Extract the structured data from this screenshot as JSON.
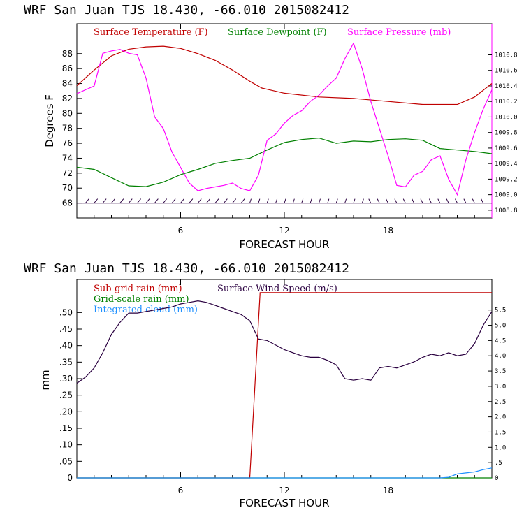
{
  "chart_data": [
    {
      "type": "line",
      "title": "WRF  San Juan TJS  18.430, -66.010  2015082412",
      "xlabel": "FORECAST HOUR",
      "ylabel": "Degrees F",
      "xlim": [
        0,
        24
      ],
      "ylim": [
        66,
        92
      ],
      "y2lim": [
        1008.7,
        1011.2
      ],
      "x_ticks": [
        "6",
        "12",
        "18"
      ],
      "y_ticks": [
        "68",
        "70",
        "72",
        "74",
        "76",
        "78",
        "80",
        "82",
        "84",
        "86",
        "88"
      ],
      "y2_ticks": [
        "1008.8",
        "1009.0",
        "1009.2",
        "1009.4",
        "1009.6",
        "1009.8",
        "1010.0",
        "1010.2",
        "1010.4",
        "1010.6",
        "1010.8"
      ],
      "colors": {
        "temperature": "#c00000",
        "dewpoint": "#008000",
        "pressure": "#ff00ff",
        "wind": "#2a0040"
      },
      "wind_barbs": "row of wind barbs along y=68",
      "series": [
        {
          "name": "Surface Temperature (F)",
          "axis": "left",
          "x": [
            0,
            1,
            2,
            3,
            4,
            5,
            6,
            7,
            8,
            9,
            10,
            10.7,
            12,
            14,
            16,
            18,
            20,
            22,
            23,
            24
          ],
          "values": [
            83.7,
            85.8,
            87.7,
            88.6,
            88.9,
            89.0,
            88.7,
            88.0,
            87.1,
            85.8,
            84.3,
            83.4,
            82.7,
            82.2,
            82.0,
            81.6,
            81.2,
            81.2,
            82.2,
            84.0
          ]
        },
        {
          "name": "Surface Dewpoint (F)",
          "axis": "left",
          "x": [
            0,
            1,
            2,
            3,
            4,
            5,
            6,
            7,
            8,
            9,
            10,
            11,
            12,
            13,
            14,
            15,
            16,
            17,
            18,
            19,
            20,
            21,
            22,
            23,
            24
          ],
          "values": [
            72.8,
            72.5,
            71.4,
            70.3,
            70.2,
            70.8,
            71.8,
            72.5,
            73.3,
            73.7,
            74.0,
            75.1,
            76.1,
            76.5,
            76.7,
            76.0,
            76.3,
            76.2,
            76.5,
            76.6,
            76.4,
            75.3,
            75.1,
            74.9,
            74.6
          ]
        },
        {
          "name": "Surface Pressure (mb)",
          "axis": "right",
          "x": [
            0,
            0.5,
            1,
            1.5,
            2,
            2.5,
            3,
            3.5,
            4,
            4.5,
            5,
            5.5,
            6,
            6.5,
            7,
            7.5,
            8,
            8.5,
            9,
            9.5,
            10,
            10.5,
            11,
            11.5,
            12,
            12.5,
            13,
            13.5,
            14,
            14.5,
            15,
            15.5,
            16,
            16.5,
            17,
            17.5,
            18,
            18.5,
            19,
            19.5,
            20,
            20.5,
            21,
            21.5,
            22,
            22.5,
            23,
            23.5,
            24
          ],
          "values": [
            1010.3,
            1010.35,
            1010.4,
            1010.82,
            1010.85,
            1010.87,
            1010.82,
            1010.8,
            1010.5,
            1010.0,
            1009.85,
            1009.55,
            1009.35,
            1009.15,
            1009.05,
            1009.08,
            1009.1,
            1009.12,
            1009.15,
            1009.08,
            1009.05,
            1009.25,
            1009.7,
            1009.78,
            1009.92,
            1010.02,
            1010.08,
            1010.2,
            1010.28,
            1010.4,
            1010.5,
            1010.75,
            1010.95,
            1010.62,
            1010.2,
            1009.85,
            1009.5,
            1009.12,
            1009.1,
            1009.25,
            1009.3,
            1009.45,
            1009.5,
            1009.2,
            1009.0,
            1009.45,
            1009.8,
            1010.1,
            1010.35
          ]
        }
      ]
    },
    {
      "type": "line",
      "title": "WRF  San Juan TJS  18.430, -66.010  2015082412",
      "xlabel": "FORECAST HOUR",
      "ylabel": "mm",
      "xlim": [
        0,
        24
      ],
      "ylim": [
        0,
        0.6
      ],
      "y2lim": [
        0,
        6.5
      ],
      "x_ticks": [
        "6",
        "12",
        "18"
      ],
      "y_ticks": [
        "0",
        ".05",
        ".10",
        ".15",
        ".20",
        ".25",
        ".30",
        ".35",
        ".40",
        ".45",
        ".50"
      ],
      "y2_ticks": [
        "0",
        ".5",
        "1.0",
        "1.5",
        "2.0",
        "2.5",
        "3.0",
        "3.5",
        "4.0",
        "4.5",
        "5.0",
        "5.5"
      ],
      "colors": {
        "subgrid": "#c00000",
        "gridscale": "#008000",
        "cloud": "#1e90ff",
        "wind": "#2a0040"
      },
      "series": [
        {
          "name": "Sub-grid rain (mm)",
          "axis": "left",
          "x": [
            0,
            10.0,
            10.6,
            24
          ],
          "values": [
            0,
            0,
            0.56,
            0.56
          ]
        },
        {
          "name": "Grid-scale rain (mm)",
          "axis": "left",
          "x": [
            0,
            24
          ],
          "values": [
            0,
            0
          ]
        },
        {
          "name": "Integrated cloud (mm)",
          "axis": "left",
          "x": [
            0,
            21.0,
            21.5,
            22,
            22.5,
            23,
            23.5,
            24
          ],
          "values": [
            0,
            0,
            0.002,
            0.012,
            0.015,
            0.018,
            0.025,
            0.03
          ]
        },
        {
          "name": "Surface Wind Speed (m/s)",
          "axis": "right",
          "x": [
            0,
            0.5,
            1,
            1.5,
            2,
            2.5,
            3,
            3.5,
            4,
            4.5,
            5,
            5.5,
            6,
            6.5,
            7,
            7.5,
            8,
            8.5,
            9,
            9.5,
            10,
            10.5,
            11,
            11.5,
            12,
            12.5,
            13,
            13.5,
            14,
            14.5,
            15,
            15.5,
            16,
            16.5,
            17,
            17.5,
            18,
            18.5,
            19,
            19.5,
            20,
            20.5,
            21,
            21.5,
            22,
            22.5,
            23,
            23.5,
            24
          ],
          "values": [
            3.1,
            3.3,
            3.6,
            4.1,
            4.7,
            5.1,
            5.4,
            5.4,
            5.45,
            5.5,
            5.55,
            5.6,
            5.7,
            5.75,
            5.8,
            5.75,
            5.65,
            5.55,
            5.45,
            5.35,
            5.15,
            4.55,
            4.5,
            4.35,
            4.2,
            4.1,
            4.0,
            3.95,
            3.95,
            3.85,
            3.7,
            3.25,
            3.2,
            3.25,
            3.2,
            3.6,
            3.65,
            3.6,
            3.7,
            3.8,
            3.95,
            4.05,
            4.0,
            4.1,
            4.0,
            4.05,
            4.4,
            5.0,
            5.45
          ]
        }
      ]
    }
  ]
}
